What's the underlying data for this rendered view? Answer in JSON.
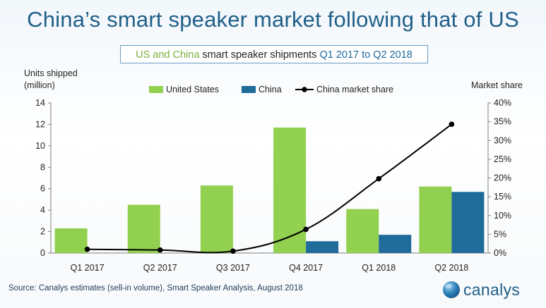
{
  "title": "China’s smart speaker market following that of US",
  "subtitle": {
    "part1": "US and China",
    "part2": " smart speaker shipments ",
    "part3": "Q1 2017 to Q2 2018"
  },
  "source": "Source: Canalys estimates (sell-in volume), Smart Speaker Analysis, August 2018",
  "logo_text": "canalys",
  "colors": {
    "us": "#92d050",
    "china": "#1f6b99",
    "line": "#000000",
    "title": "#1f5f88"
  },
  "chart_data": {
    "type": "bar",
    "categories": [
      "Q1 2017",
      "Q2 2017",
      "Q3 2017",
      "Q4 2017",
      "Q1 2018",
      "Q2 2018"
    ],
    "series": [
      {
        "name": "United States",
        "type": "bar",
        "axis": "left",
        "values": [
          2.3,
          4.5,
          6.3,
          11.7,
          4.1,
          6.2
        ]
      },
      {
        "name": "China",
        "type": "bar",
        "axis": "left",
        "values": [
          0,
          0,
          0,
          1.1,
          1.7,
          5.7
        ]
      },
      {
        "name": "China market share",
        "type": "line",
        "axis": "right",
        "values": [
          1.0,
          0.8,
          0.5,
          6.3,
          19.8,
          34.3
        ]
      }
    ],
    "ylabel_line1": "Units shipped",
    "ylabel_line2": "(million)",
    "y2label": "Market share",
    "ylim": [
      0,
      14
    ],
    "yticks": [
      "0",
      "2",
      "4",
      "6",
      "8",
      "10",
      "12",
      "14"
    ],
    "y2lim": [
      0,
      40
    ],
    "y2ticks": [
      "0%",
      "5%",
      "10%",
      "15%",
      "20%",
      "25%",
      "30%",
      "35%",
      "40%"
    ],
    "legend_position": "top",
    "grid": false
  }
}
